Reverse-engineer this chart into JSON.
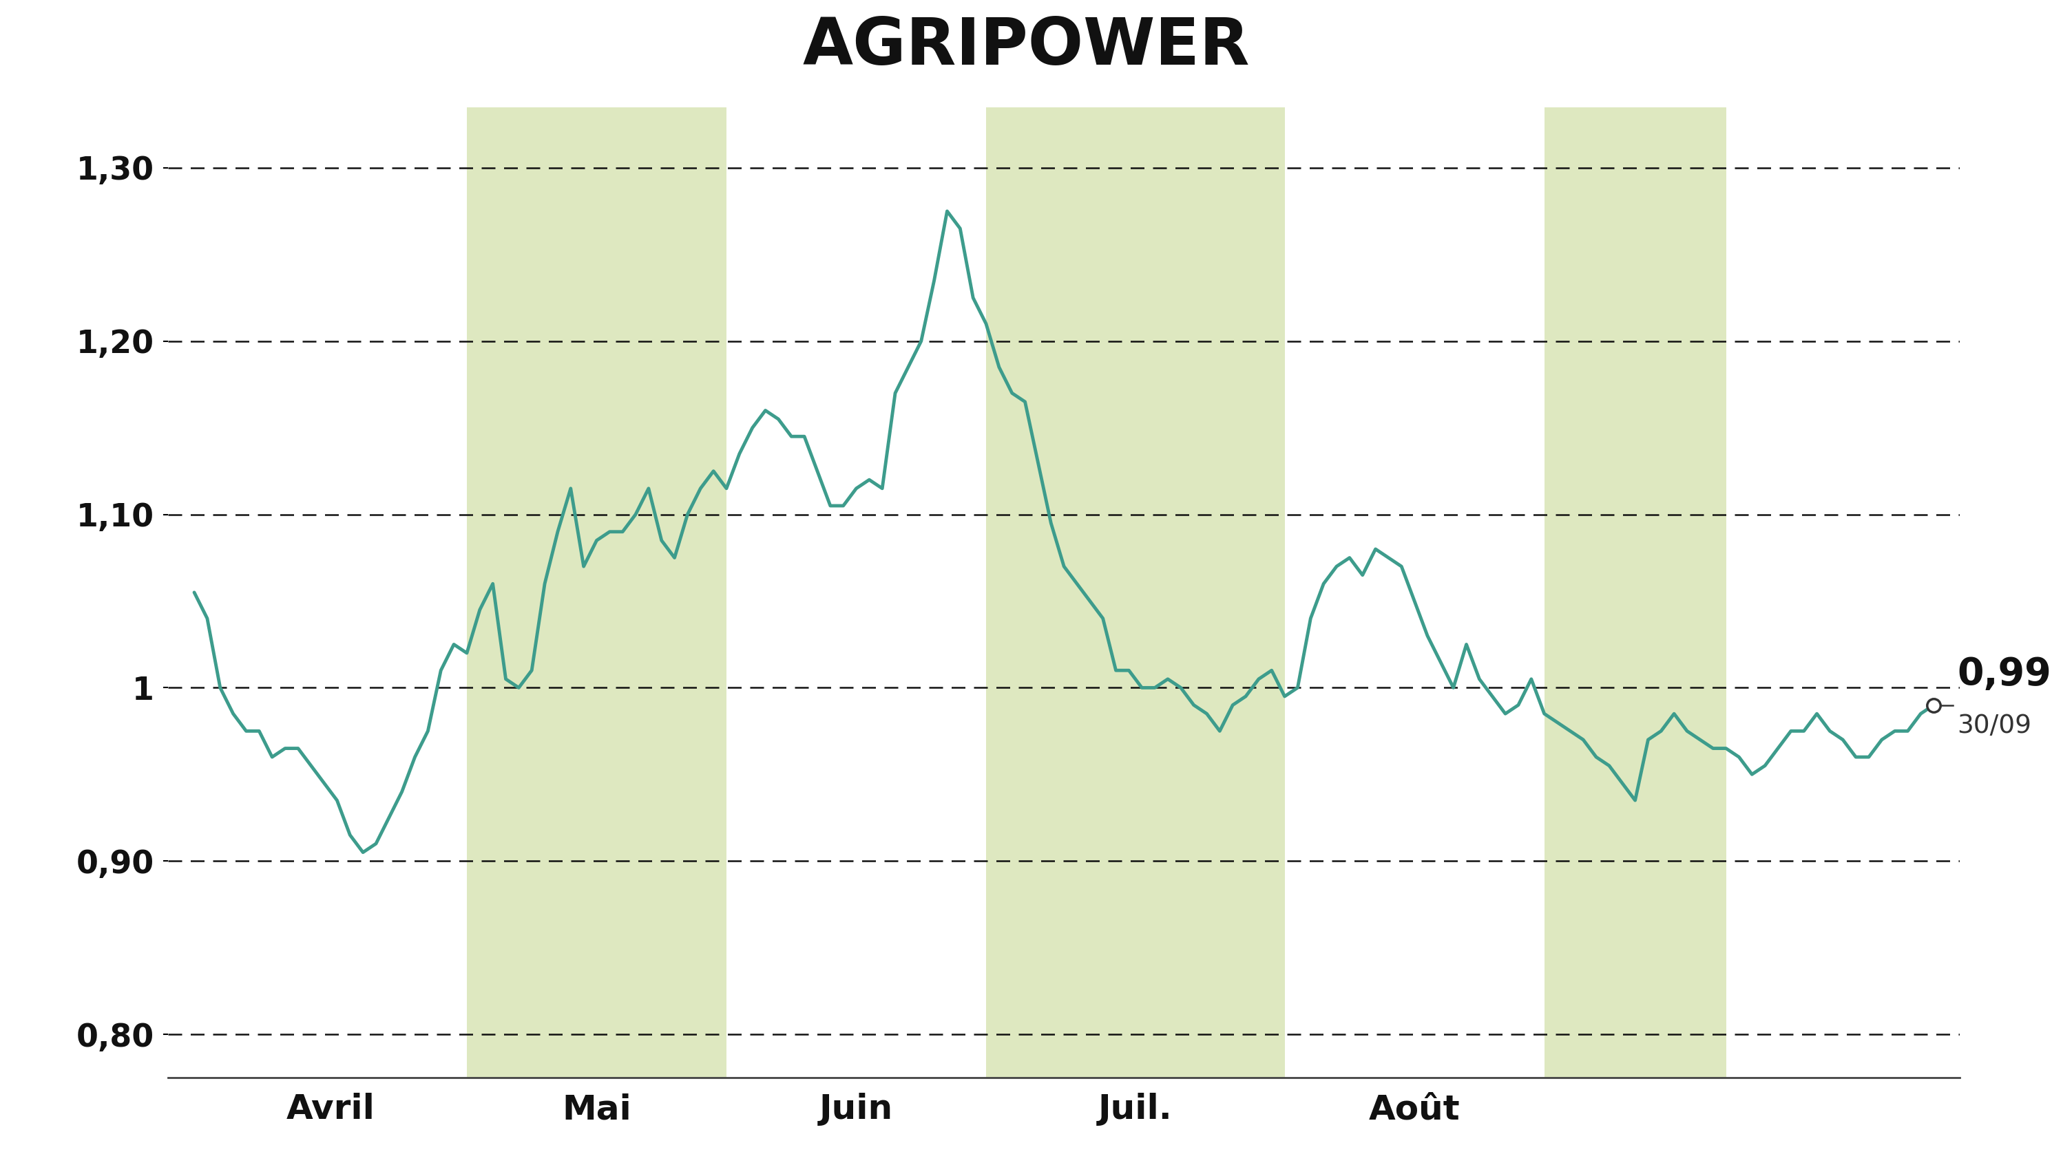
{
  "title": "AGRIPOWER",
  "title_bg_color": "#c8da96",
  "title_fontsize": 68,
  "line_color": "#3d9c8c",
  "line_width": 3.5,
  "background_color": "#ffffff",
  "ylim": [
    0.775,
    1.335
  ],
  "yticks": [
    0.8,
    0.9,
    1.0,
    1.1,
    1.2,
    1.3
  ],
  "ytick_labels": [
    "0,80",
    "0,90",
    "1",
    "1,10",
    "1,20",
    "1,30"
  ],
  "grid_color": "#111111",
  "shade_color": "#c8da96",
  "shade_alpha": 0.6,
  "last_price": "0,99",
  "last_date": "30/09",
  "month_labels": [
    "Avril",
    "Mai",
    "Juin",
    "Juil.",
    "Août"
  ],
  "prices": [
    1.055,
    1.04,
    1.0,
    0.985,
    0.975,
    0.975,
    0.96,
    0.965,
    0.965,
    0.955,
    0.945,
    0.935,
    0.915,
    0.905,
    0.91,
    0.925,
    0.94,
    0.96,
    0.975,
    1.01,
    1.025,
    1.02,
    1.045,
    1.06,
    1.005,
    1.0,
    1.01,
    1.06,
    1.09,
    1.115,
    1.07,
    1.085,
    1.09,
    1.09,
    1.1,
    1.115,
    1.085,
    1.075,
    1.1,
    1.115,
    1.125,
    1.115,
    1.135,
    1.15,
    1.16,
    1.155,
    1.145,
    1.145,
    1.125,
    1.105,
    1.105,
    1.115,
    1.12,
    1.115,
    1.17,
    1.185,
    1.2,
    1.235,
    1.275,
    1.265,
    1.225,
    1.21,
    1.185,
    1.17,
    1.165,
    1.13,
    1.095,
    1.07,
    1.06,
    1.05,
    1.04,
    1.01,
    1.01,
    1.0,
    1.0,
    1.005,
    1.0,
    0.99,
    0.985,
    0.975,
    0.99,
    0.995,
    1.005,
    1.01,
    0.995,
    1.0,
    1.04,
    1.06,
    1.07,
    1.075,
    1.065,
    1.08,
    1.075,
    1.07,
    1.05,
    1.03,
    1.015,
    1.0,
    1.025,
    1.005,
    0.995,
    0.985,
    0.99,
    1.005,
    0.985,
    0.98,
    0.975,
    0.97,
    0.96,
    0.955,
    0.945,
    0.935,
    0.97,
    0.975,
    0.985,
    0.975,
    0.97,
    0.965,
    0.965,
    0.96,
    0.95,
    0.955,
    0.965,
    0.975,
    0.975,
    0.985,
    0.975,
    0.97,
    0.96,
    0.96,
    0.97,
    0.975,
    0.975,
    0.985,
    0.99
  ],
  "month_boundaries_idx": [
    0,
    21,
    41,
    61,
    84,
    104,
    118
  ],
  "shaded_month_indices": [
    1,
    3,
    5
  ]
}
